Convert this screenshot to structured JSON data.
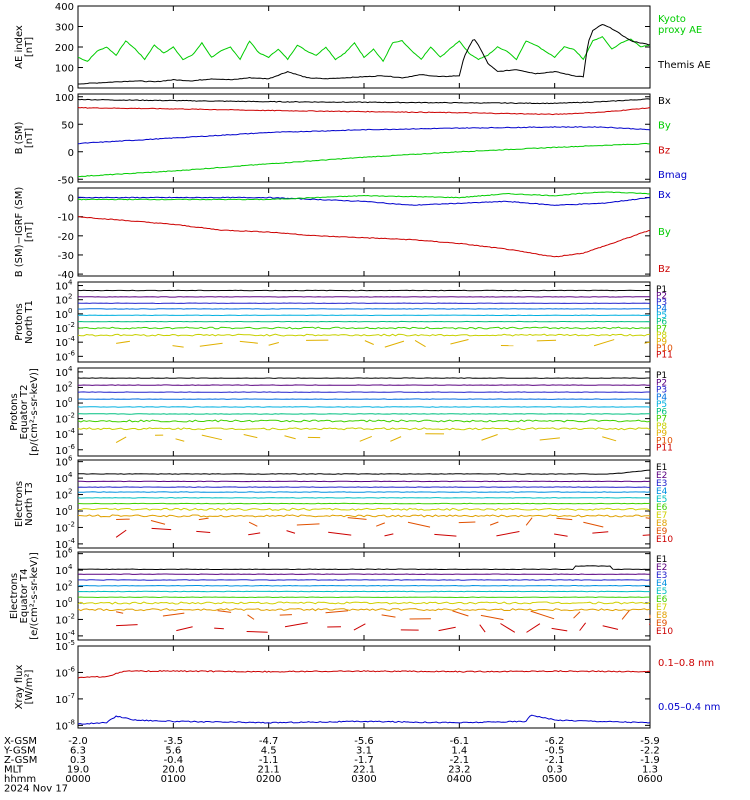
{
  "chart_data": [
    {
      "type": "line",
      "ylabel": "AE index\n[nT]",
      "yticks": [
        0,
        100,
        200,
        300,
        400
      ],
      "ylog": false,
      "ylim": [
        0,
        400
      ],
      "series": [
        {
          "name": "Kyoto\nproxy AE",
          "color": "#00cc00",
          "x": [
            0,
            0.1,
            0.2,
            0.3,
            0.4,
            0.5,
            0.6,
            0.7,
            0.8,
            0.9,
            1,
            1.1,
            1.2,
            1.3,
            1.4,
            1.5,
            1.6,
            1.7,
            1.8,
            1.9,
            2,
            2.1,
            2.2,
            2.3,
            2.4,
            2.5,
            2.6,
            2.7,
            2.8,
            2.9,
            3,
            3.1,
            3.2,
            3.3,
            3.4,
            3.5,
            3.6,
            3.7,
            3.8,
            3.9,
            4,
            4.1,
            4.2,
            4.3,
            4.4,
            4.5,
            4.6,
            4.7,
            4.8,
            4.9,
            5,
            5.1,
            5.2,
            5.3,
            5.4,
            5.5,
            5.6,
            5.7,
            5.8,
            5.9,
            6
          ],
          "y": [
            150,
            130,
            180,
            200,
            160,
            230,
            190,
            140,
            210,
            170,
            200,
            140,
            160,
            220,
            150,
            180,
            200,
            140,
            230,
            170,
            150,
            190,
            140,
            210,
            180,
            160,
            200,
            140,
            170,
            220,
            150,
            190,
            130,
            220,
            230,
            180,
            140,
            200,
            150,
            190,
            230,
            170,
            140,
            160,
            200,
            180,
            140,
            230,
            210,
            180,
            150,
            200,
            190,
            140,
            230,
            250,
            190,
            220,
            240,
            200,
            210
          ]
        },
        {
          "name": "Themis AE",
          "color": "#000000",
          "x": [
            0,
            0.2,
            0.4,
            0.6,
            0.8,
            1,
            1.2,
            1.4,
            1.6,
            1.8,
            2,
            2.2,
            2.4,
            2.6,
            2.8,
            3,
            3.2,
            3.4,
            3.6,
            3.8,
            4,
            4.05,
            4.1,
            4.15,
            4.2,
            4.3,
            4.4,
            4.6,
            4.8,
            5,
            5.2,
            5.3,
            5.35,
            5.4,
            5.5,
            5.6,
            5.7,
            5.8,
            5.9,
            6
          ],
          "y": [
            20,
            25,
            30,
            35,
            30,
            40,
            35,
            45,
            40,
            50,
            45,
            80,
            50,
            45,
            50,
            55,
            60,
            50,
            65,
            55,
            60,
            150,
            200,
            240,
            210,
            120,
            80,
            90,
            70,
            80,
            60,
            55,
            220,
            280,
            310,
            290,
            260,
            230,
            220,
            210
          ]
        }
      ]
    },
    {
      "type": "line",
      "ylabel": "B (SM)\n[nT]",
      "yticks": [
        -50,
        0,
        50,
        100
      ],
      "ylog": false,
      "ylim": [
        -55,
        105
      ],
      "series": [
        {
          "name": "Bx",
          "color": "#000000",
          "x": [
            0,
            1,
            2,
            3,
            4,
            5,
            5.5,
            6
          ],
          "y": [
            95,
            93,
            91,
            90,
            89,
            88,
            91,
            96
          ]
        },
        {
          "name": "By",
          "color": "#00cc00",
          "x": [
            0,
            1,
            2,
            3,
            4,
            5,
            6
          ],
          "y": [
            -45,
            -35,
            -22,
            -10,
            0,
            8,
            15
          ]
        },
        {
          "name": "Bz",
          "color": "#cc0000",
          "x": [
            0,
            1,
            2,
            3,
            4,
            5,
            5.5,
            6
          ],
          "y": [
            80,
            78,
            75,
            73,
            71,
            68,
            72,
            80
          ]
        },
        {
          "name": "Bmag",
          "color": "#0000cc",
          "x": [
            0,
            1,
            2,
            3,
            4,
            5,
            5.5,
            6
          ],
          "y": [
            15,
            25,
            35,
            40,
            43,
            45,
            45,
            40
          ]
        }
      ]
    },
    {
      "type": "line",
      "ylabel": "B (SM)−IGRF (SM)\n[nT]",
      "yticks": [
        -40,
        -30,
        -20,
        -10,
        0
      ],
      "ylog": false,
      "ylim": [
        -41,
        5
      ],
      "series": [
        {
          "name": "Bx",
          "color": "#0000cc",
          "x": [
            0,
            1,
            2,
            2.5,
            3,
            3.5,
            4,
            4.5,
            5,
            5.5,
            6
          ],
          "y": [
            0,
            0,
            0,
            -1,
            -2,
            -4,
            -3,
            -2,
            -4,
            -3,
            0
          ]
        },
        {
          "name": "By",
          "color": "#00cc00",
          "x": [
            0,
            1,
            2,
            3,
            4,
            4.5,
            5,
            5.5,
            6
          ],
          "y": [
            -1,
            -1,
            -1,
            1,
            0,
            2,
            1,
            3,
            2
          ]
        },
        {
          "name": "Bz",
          "color": "#cc0000",
          "x": [
            0,
            0.5,
            1,
            1.5,
            2,
            2.5,
            3,
            3.5,
            4,
            4.5,
            5,
            5.3,
            5.6,
            6
          ],
          "y": [
            -10,
            -12,
            -14,
            -17,
            -18,
            -20,
            -21,
            -22,
            -24,
            -27,
            -31,
            -29,
            -24,
            -17
          ]
        }
      ]
    },
    {
      "type": "line",
      "ylabel": "Protons\nNorth T1",
      "yticks_exp": [
        -6,
        -4,
        -2,
        0,
        2,
        4
      ],
      "ylog": true,
      "ylim_exp": [
        -6.8,
        4.5
      ],
      "series_names": [
        "P1",
        "P2",
        "P3",
        "P4",
        "P5",
        "P6",
        "P7",
        "P8",
        "P9",
        "P10",
        "P11"
      ],
      "series_colors": [
        "#000000",
        "#5a0080",
        "#2222cc",
        "#0070e0",
        "#00b0e0",
        "#00c080",
        "#40d000",
        "#c8d000",
        "#e0b000",
        "#e05000",
        "#cc0000"
      ],
      "levels_exp": [
        3.3,
        2.4,
        1.5,
        0.7,
        -0.2,
        -1.1,
        -2.0,
        -3.0,
        -4.2,
        null,
        null
      ]
    },
    {
      "type": "line",
      "ylabel": "Protons\nEquator T2\n[p/(cm²-s-sr-keV)]",
      "yticks_exp": [
        -6,
        -4,
        -2,
        0,
        2,
        4
      ],
      "ylog": true,
      "ylim_exp": [
        -6.8,
        4.5
      ],
      "series_names": [
        "P1",
        "P2",
        "P3",
        "P4",
        "P5",
        "P6",
        "P7",
        "P8",
        "P9",
        "P10",
        "P11"
      ],
      "series_colors": [
        "#000000",
        "#5a0080",
        "#2222cc",
        "#0070e0",
        "#00b0e0",
        "#00c080",
        "#40d000",
        "#c8d000",
        "#e0b000",
        "#e05000",
        "#cc0000"
      ],
      "levels_exp": [
        3.2,
        2.3,
        1.4,
        0.5,
        -0.5,
        -1.4,
        -2.3,
        -3.3,
        -4.5,
        null,
        null
      ]
    },
    {
      "type": "line",
      "ylabel": "Electrons\nNorth T3",
      "yticks_exp": [
        -4,
        -2,
        0,
        2,
        4,
        6
      ],
      "ylog": true,
      "ylim_exp": [
        -4.5,
        6.2
      ],
      "series_names": [
        "E1",
        "E2",
        "E3",
        "E4",
        "E5",
        "E6",
        "E7",
        "E8",
        "E9",
        "E10"
      ],
      "series_colors": [
        "#000000",
        "#5a0080",
        "#2222cc",
        "#0090e0",
        "#00c0c0",
        "#40d000",
        "#d0d000",
        "#e0a000",
        "#e05000",
        "#cc0000"
      ],
      "levels_exp": [
        4.5,
        3.6,
        2.9,
        2.3,
        1.6,
        0.9,
        0.2,
        -0.6,
        -1.4,
        -2.6
      ]
    },
    {
      "type": "line",
      "ylabel": "Electrons\nEquator T4\n[e/(cm²-s-sr-keV)]",
      "yticks_exp": [
        -4,
        -2,
        0,
        2,
        4,
        6
      ],
      "ylog": true,
      "ylim_exp": [
        -4.5,
        6.2
      ],
      "series_names": [
        "E1",
        "E2",
        "E3",
        "E4",
        "E5",
        "E6",
        "E7",
        "E8",
        "E9",
        "E10"
      ],
      "series_colors": [
        "#000000",
        "#5a0080",
        "#2222cc",
        "#0090e0",
        "#00c0c0",
        "#40d000",
        "#d0d000",
        "#e0a000",
        "#e05000",
        "#cc0000"
      ],
      "levels_exp": [
        4.1,
        3.5,
        2.8,
        2.1,
        1.4,
        0.7,
        0.0,
        -0.8,
        -1.5,
        -3.0
      ]
    },
    {
      "type": "line",
      "ylabel": "Xray flux\n[W/m²]",
      "yticks_exp": [
        -8,
        -7,
        -6,
        -5
      ],
      "ylog": true,
      "ylim_exp": [
        -8.1,
        -5
      ],
      "series": [
        {
          "name": "0.1–0.8 nm",
          "color": "#cc0000",
          "x": [
            0,
            0.3,
            0.5,
            1,
            2,
            3,
            4,
            5,
            6
          ],
          "y_exp": [
            -6.2,
            -6.15,
            -5.95,
            -5.95,
            -5.97,
            -5.95,
            -5.97,
            -5.95,
            -5.97
          ]
        },
        {
          "name": "0.05–0.4 nm",
          "color": "#0000cc",
          "x": [
            0,
            0.3,
            0.4,
            0.6,
            1,
            2,
            3,
            4,
            4.7,
            4.75,
            5,
            6
          ],
          "y_exp": [
            -7.95,
            -7.9,
            -7.65,
            -7.8,
            -7.85,
            -7.9,
            -7.85,
            -7.9,
            -7.85,
            -7.6,
            -7.8,
            -7.9
          ]
        }
      ]
    }
  ],
  "xaxis": {
    "ticks": [
      0,
      1,
      2,
      3,
      4,
      5,
      6
    ],
    "rows": [
      {
        "label": "X-GSM",
        "values": [
          "-2.0",
          "-3.5",
          "-4.7",
          "-5.6",
          "-6.1",
          "-6.2",
          "-5.9"
        ]
      },
      {
        "label": "Y-GSM",
        "values": [
          "6.3",
          "5.6",
          "4.5",
          "3.1",
          "1.4",
          "-0.5",
          "-2.2"
        ]
      },
      {
        "label": "Z-GSM",
        "values": [
          "0.3",
          "-0.4",
          "-1.1",
          "-1.7",
          "-2.1",
          "-2.1",
          "-1.9"
        ]
      },
      {
        "label": "MLT",
        "values": [
          "19.0",
          "20.0",
          "21.1",
          "22.1",
          "23.2",
          "0.3",
          "1.3"
        ]
      },
      {
        "label": "hhmm",
        "values": [
          "0000",
          "0100",
          "0200",
          "0300",
          "0400",
          "0500",
          "0600"
        ]
      }
    ],
    "date": "2024 Nov 17"
  }
}
